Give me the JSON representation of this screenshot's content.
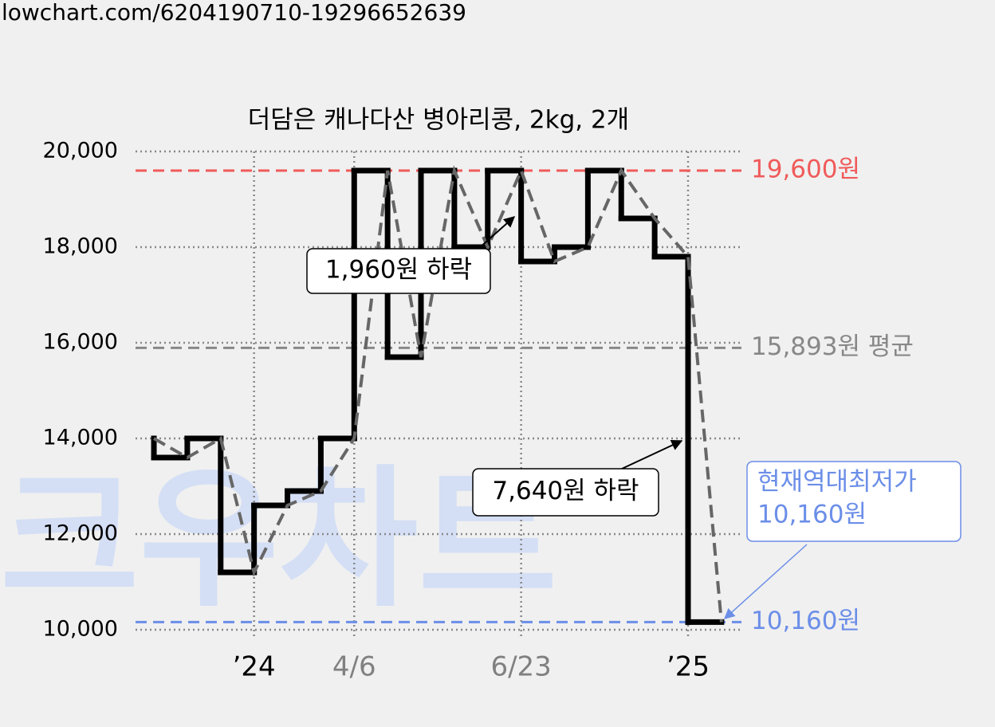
{
  "chart_data": {
    "type": "step",
    "source": "lowchart.com/6204190710-19296652639",
    "watermark": "크우차트",
    "title": "더담은 캐나다산 병아리콩, 2kg, 2개",
    "x": [
      0,
      1,
      2,
      3,
      4,
      5,
      6,
      7,
      8,
      9,
      10,
      11,
      12,
      13,
      14,
      15,
      16,
      17
    ],
    "series": [
      {
        "color": "#000000",
        "trend_color": "#666666",
        "values": [
          14000,
          13600,
          14000,
          11200,
          12600,
          12900,
          14000,
          19600,
          15700,
          19600,
          18000,
          19600,
          17700,
          18000,
          19600,
          18600,
          17800,
          10160
        ]
      }
    ],
    "xlim": [
      -0.55,
      17.6
    ],
    "xticks": [
      {
        "value": 3,
        "label": "’24"
      },
      {
        "value": 6,
        "label": "4/6"
      },
      {
        "value": 11,
        "label": "6/23"
      },
      {
        "value": 16,
        "label": "’25"
      }
    ],
    "xtick_colors": [
      "#000000",
      "#808080",
      "#808080",
      "#000000"
    ],
    "ylim": [
      10000,
      20000
    ],
    "yticks": [
      {
        "value": 10000,
        "label": "10,000"
      },
      {
        "value": 12000,
        "label": "12,000"
      },
      {
        "value": 14000,
        "label": "14,000"
      },
      {
        "value": 16000,
        "label": "16,000"
      },
      {
        "value": 18000,
        "label": "18,000"
      },
      {
        "value": 20000,
        "label": "20,000"
      }
    ],
    "grid": true,
    "reference_lines": [
      {
        "value": 19600,
        "label": "19,600원",
        "color": "#f05a5a"
      },
      {
        "value": 15893,
        "label": "15,893원 평균",
        "color": "#888888"
      },
      {
        "value": 10160,
        "label": "10,160원",
        "color": "#6b8ee8"
      }
    ],
    "annotations": [
      {
        "lines": [
          "1,960원 하락"
        ],
        "color": "#000000"
      },
      {
        "lines": [
          "7,640원 하락"
        ],
        "color": "#000000"
      },
      {
        "lines": [
          "현재역대최저가",
          "10,160원"
        ],
        "color": "#6b8ee8"
      }
    ]
  }
}
